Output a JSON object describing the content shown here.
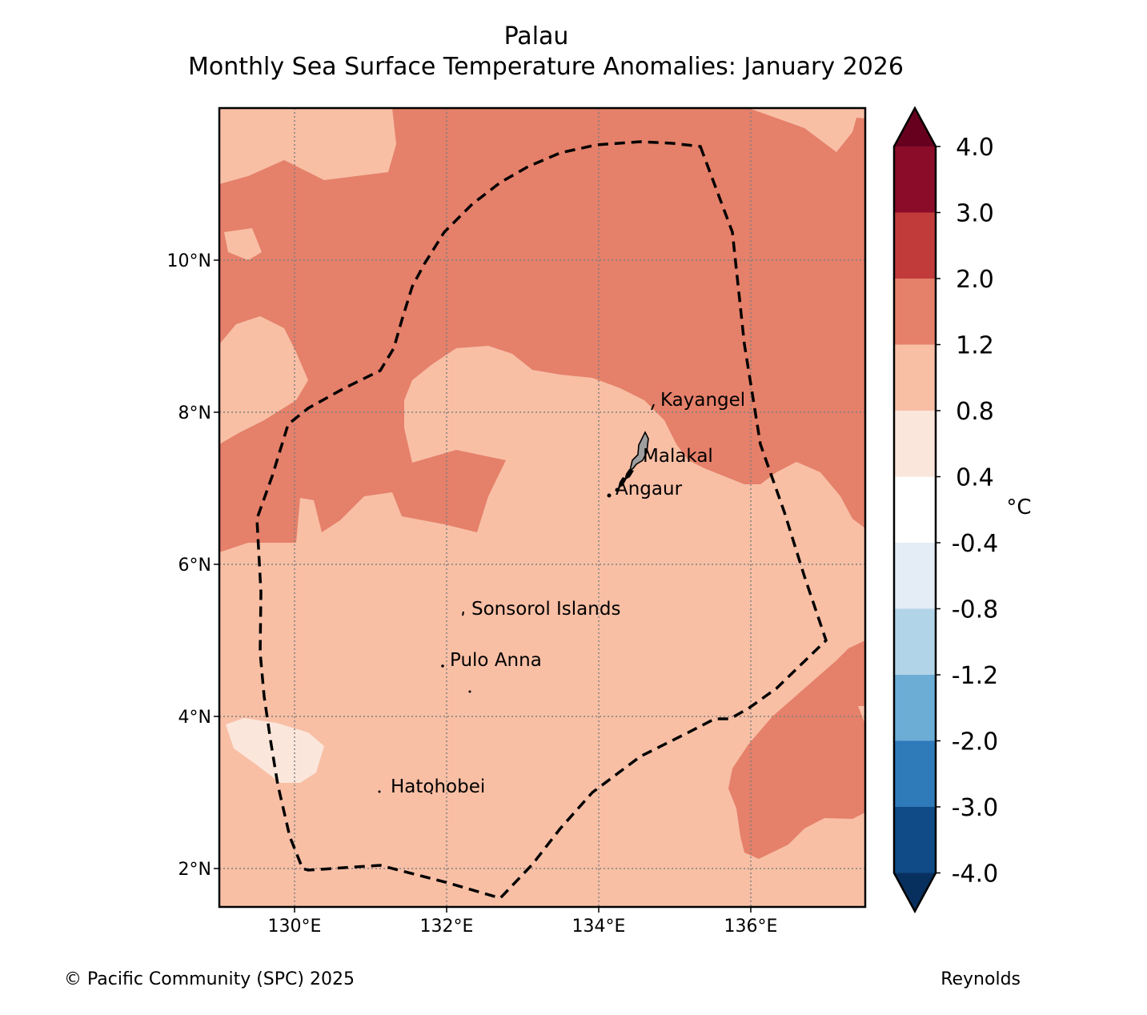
{
  "title": {
    "line1": "Palau",
    "line2": "Monthly Sea Surface Temperature Anomalies: January 2026"
  },
  "map": {
    "lon_range": [
      129.0,
      137.5
    ],
    "lat_range": [
      1.5,
      12.0
    ],
    "lon_ticks": [
      "130°E",
      "132°E",
      "134°E",
      "136°E"
    ],
    "lat_ticks": [
      "10°N",
      "8°N",
      "6°N",
      "4°N",
      "2°N"
    ],
    "places": [
      {
        "name": "Kayangel"
      },
      {
        "name": "Malakal"
      },
      {
        "name": "Angaur"
      },
      {
        "name": "Sonsorol Islands"
      },
      {
        "name": "Pulo Anna"
      },
      {
        "name": "Hatohobei"
      }
    ],
    "boundary": "EEZ (dashed)"
  },
  "colorbar": {
    "unit": "°C",
    "labels": [
      "4.0",
      "3.0",
      "2.0",
      "1.2",
      "0.8",
      "0.4",
      "-0.4",
      "-0.8",
      "-1.2",
      "-2.0",
      "-3.0",
      "-4.0"
    ],
    "colors": [
      "#67001f",
      "#8a0c28",
      "#c23b3b",
      "#e5806a",
      "#f8bfa5",
      "#fbe6db",
      "#ffffff",
      "#e4edf5",
      "#b2d4e8",
      "#6badd5",
      "#2f7ab9",
      "#114b87",
      "#08305e"
    ]
  },
  "footer": {
    "copyright": "© Pacific Community (SPC) 2025",
    "source": "Reynolds"
  }
}
